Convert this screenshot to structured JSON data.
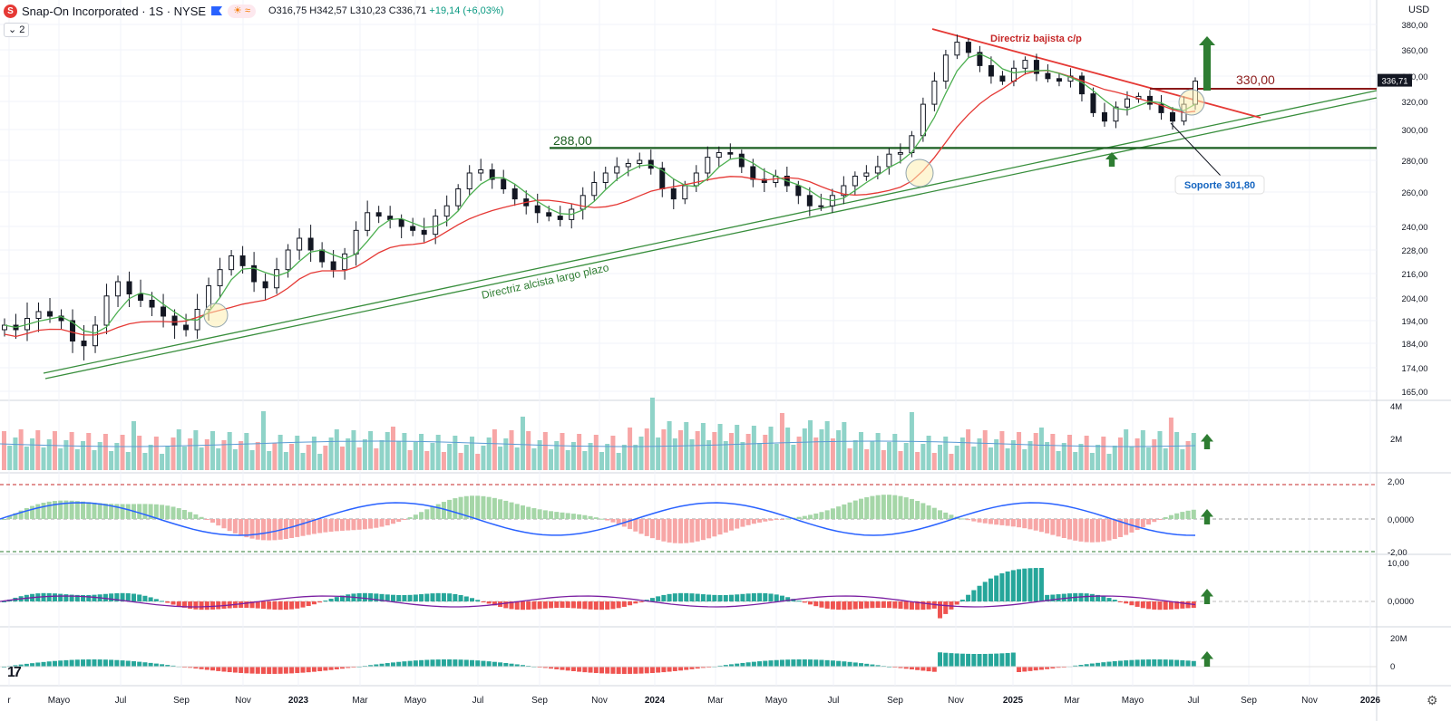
{
  "header": {
    "symbol": "Snap-On Incorporated · 1S · NYSE",
    "logo_letter": "S",
    "pill": "☀ ≈",
    "ohlc_prefix": "O316,75  H342,57  L310,23  C",
    "ohlc_close": "336,71",
    "ohlc_change": "+19,14 (+6,03%)",
    "collapse_label": "2"
  },
  "currency": "USD",
  "tv_logo": "17",
  "settings_icon": "gear-icon",
  "colors": {
    "up_volume": "#8fd3c8",
    "down_volume": "#f7a6a6",
    "sma_fast": "#4caf50",
    "sma_slow": "#e53935",
    "trend_up": "#388e3c",
    "trend_down": "#e53935",
    "resistance": "#8b1a1a",
    "support_line": "#1b5e20",
    "macd_line": "#2962ff",
    "hist_pos": "#26a69a",
    "hist_neg": "#ef5350",
    "arrow": "#2e7d32"
  },
  "price_axis": {
    "ticks": [
      "380,00",
      "360,00",
      "340,00",
      "320,00",
      "300,00",
      "280,00",
      "260,00",
      "240,00",
      "228,00",
      "216,00",
      "204,00",
      "194,00",
      "184,00",
      "174,00",
      "165,00"
    ],
    "current_price": "336,71"
  },
  "volume_axis": {
    "ticks": [
      "4M",
      "2M"
    ]
  },
  "macd_axis": {
    "ticks": [
      "2,00",
      "0,0000",
      "-2,00"
    ]
  },
  "osc_axis": {
    "ticks": [
      "10,00",
      "0,0000"
    ]
  },
  "vol2_axis": {
    "ticks": [
      "20M",
      "0"
    ]
  },
  "time_axis": {
    "labels": [
      "r",
      "Mayo",
      "Jul",
      "Sep",
      "Nov",
      "2023",
      "Mar",
      "Mayo",
      "Jul",
      "Sep",
      "Nov",
      "2024",
      "Mar",
      "Mayo",
      "Jul",
      "Sep",
      "Nov",
      "2025",
      "Mar",
      "Mayo",
      "Jul",
      "Sep",
      "Nov",
      "2026"
    ],
    "bold": [
      "2023",
      "2024",
      "2025",
      "2026"
    ]
  },
  "annotations": {
    "downtrend": "Directriz bajista c/p",
    "uptrend": "Directriz alcista largo plazo",
    "resistance": "330,00",
    "support_level": "288,00",
    "support_callout": "Soporte 301,80"
  },
  "chart_data": {
    "type": "candlestick",
    "series": [
      {
        "name": "price_weekly_close_approx",
        "values": [
          192,
          190,
          195,
          198,
          196,
          194,
          185,
          183,
          192,
          205,
          212,
          206,
          203,
          200,
          196,
          192,
          190,
          199,
          210,
          218,
          225,
          220,
          212,
          209,
          218,
          228,
          234,
          228,
          222,
          218,
          226,
          238,
          248,
          246,
          244,
          240,
          238,
          236,
          246,
          252,
          262,
          272,
          274,
          268,
          262,
          256,
          252,
          248,
          246,
          244,
          250,
          258,
          266,
          272,
          276,
          278,
          280,
          275,
          262,
          256,
          264,
          272,
          282,
          285,
          284,
          276,
          268,
          266,
          270,
          264,
          258,
          252,
          252,
          258,
          264,
          270,
          272,
          276,
          284,
          285,
          296,
          318,
          336,
          356,
          366,
          358,
          348,
          340,
          336,
          346,
          352,
          342,
          338,
          336,
          340,
          326,
          312,
          306,
          316,
          322,
          324,
          318,
          312,
          306,
          318,
          336
        ]
      }
    ],
    "ylim": [
      160,
      385
    ],
    "levels": {
      "resistance": 330,
      "support": 288,
      "support_callout": 301.8
    }
  }
}
